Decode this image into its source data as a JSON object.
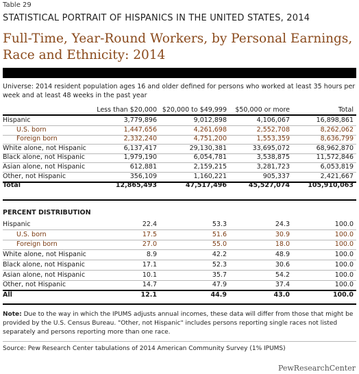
{
  "table_label": "Table 29",
  "series_title": "STATISTICAL PORTRAIT OF HISPANICS IN THE UNITED STATES, 2014",
  "title": "Full-Time, Year-Round Workers, by Personal Earnings, Race and Ethnicity: 2014",
  "universe": "Universe: 2014 resident population ages 16 and older defined for persons who worked at least 35 hours per week and at least 48 weeks in the past year",
  "columns": [
    "Less than $20,000",
    "$20,000 to $49,999",
    "$50,000 or more",
    "Total"
  ],
  "counts": [
    {
      "label": "Hispanic",
      "values": [
        "3,779,896",
        "9,012,898",
        "4,106,067",
        "16,898,861"
      ]
    },
    {
      "label": "U.S. born",
      "values": [
        "1,447,656",
        "4,261,698",
        "2,552,708",
        "8,262,062"
      ],
      "sub": true
    },
    {
      "label": "Foreign born",
      "values": [
        "2,332,240",
        "4,751,200",
        "1,553,359",
        "8,636,799"
      ],
      "sub": true
    },
    {
      "label": "White alone, not Hispanic",
      "values": [
        "6,137,417",
        "29,130,381",
        "33,695,072",
        "68,962,870"
      ]
    },
    {
      "label": "Black alone, not Hispanic",
      "values": [
        "1,979,190",
        "6,054,781",
        "3,538,875",
        "11,572,846"
      ]
    },
    {
      "label": "Asian alone, not Hispanic",
      "values": [
        "612,881",
        "2,159,215",
        "3,281,723",
        "6,053,819"
      ]
    },
    {
      "label": "Other, not Hispanic",
      "values": [
        "356,109",
        "1,160,221",
        "905,337",
        "2,421,667"
      ]
    },
    {
      "label": "Total",
      "values": [
        "12,865,493",
        "47,517,496",
        "45,527,074",
        "105,910,063"
      ],
      "bold": true
    }
  ],
  "percent_heading": "PERCENT DISTRIBUTION",
  "percents": [
    {
      "label": "Hispanic",
      "values": [
        "22.4",
        "53.3",
        "24.3",
        "100.0"
      ]
    },
    {
      "label": "U.S. born",
      "values": [
        "17.5",
        "51.6",
        "30.9",
        "100.0"
      ],
      "sub": true
    },
    {
      "label": "Foreign born",
      "values": [
        "27.0",
        "55.0",
        "18.0",
        "100.0"
      ],
      "sub": true
    },
    {
      "label": "White alone, not Hispanic",
      "values": [
        "8.9",
        "42.2",
        "48.9",
        "100.0"
      ]
    },
    {
      "label": "Black alone, not Hispanic",
      "values": [
        "17.1",
        "52.3",
        "30.6",
        "100.0"
      ]
    },
    {
      "label": "Asian alone, not Hispanic",
      "values": [
        "10.1",
        "35.7",
        "54.2",
        "100.0"
      ]
    },
    {
      "label": "Other, not Hispanic",
      "values": [
        "14.7",
        "47.9",
        "37.4",
        "100.0"
      ]
    },
    {
      "label": "All",
      "values": [
        "12.1",
        "44.9",
        "43.0",
        "100.0"
      ],
      "bold": true
    }
  ],
  "note_label": "Note:",
  "note_text": " Due to the way in which the IPUMS adjusts annual incomes, these data will differ from those that might be provided by the U.S. Census Bureau. \"Other, not Hispanic\" includes persons reporting single races not listed separately and persons reporting more than one race.",
  "source": "Source: Pew Research Center tabulations of 2014 American Community Survey (1% IPUMS)",
  "logo": "PewResearchCenter",
  "colors": {
    "title": "#8a4a1c",
    "subgroup": "#7b3b12",
    "bar": "#000000"
  }
}
